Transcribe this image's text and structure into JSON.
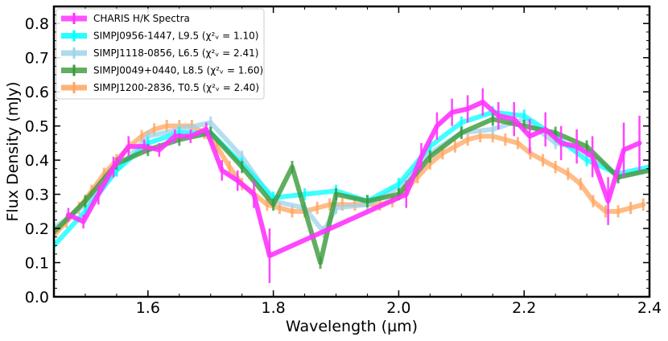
{
  "chart_data": {
    "type": "line",
    "title": "",
    "xlabel": "Wavelength (µm)",
    "ylabel": "Flux Density (mJy)",
    "xlim": [
      1.45,
      2.4
    ],
    "ylim": [
      0.0,
      0.85
    ],
    "xticks": [
      1.6,
      1.8,
      2.0,
      2.2,
      2.4
    ],
    "xtick_labels": [
      "1.6",
      "1.8",
      "2.0",
      "2.2",
      "2.4"
    ],
    "yticks": [
      0.0,
      0.1,
      0.2,
      0.3,
      0.4,
      0.5,
      0.6,
      0.7,
      0.8
    ],
    "ytick_labels": [
      "0.0",
      "0.1",
      "0.2",
      "0.3",
      "0.4",
      "0.5",
      "0.6",
      "0.7",
      "0.8"
    ],
    "grid": false,
    "legend_position": "upper-left",
    "series": [
      {
        "name": "CHARIS H/K Spectra",
        "color": "#ff33ff",
        "errorbars": true,
        "x": [
          1.473,
          1.497,
          1.521,
          1.545,
          1.569,
          1.594,
          1.618,
          1.643,
          1.668,
          1.693,
          1.718,
          1.743,
          1.769,
          1.794,
          2.012,
          2.036,
          2.061,
          2.085,
          2.11,
          2.134,
          2.159,
          2.184,
          2.209,
          2.234,
          2.259,
          2.284,
          2.309,
          2.334,
          2.359,
          2.384
        ],
        "y": [
          0.24,
          0.22,
          0.3,
          0.38,
          0.44,
          0.44,
          0.43,
          0.47,
          0.47,
          0.49,
          0.37,
          0.34,
          0.3,
          0.12,
          0.3,
          0.41,
          0.5,
          0.54,
          0.55,
          0.57,
          0.53,
          0.52,
          0.47,
          0.49,
          0.45,
          0.44,
          0.41,
          0.28,
          0.43,
          0.45
        ],
        "yerr": [
          0.02,
          0.02,
          0.03,
          0.03,
          0.03,
          0.02,
          0.02,
          0.02,
          0.02,
          0.02,
          0.03,
          0.03,
          0.04,
          0.08,
          0.04,
          0.04,
          0.04,
          0.04,
          0.04,
          0.04,
          0.04,
          0.05,
          0.05,
          0.05,
          0.05,
          0.05,
          0.06,
          0.07,
          0.08,
          0.08
        ]
      },
      {
        "name": "SIMPJ0956-1447, L9.5 (χ²ᵥ = 1.10)",
        "color": "#00ffff",
        "errorbars": true,
        "x": [
          1.45,
          1.5,
          1.55,
          1.6,
          1.65,
          1.7,
          1.75,
          1.8,
          1.85,
          1.9,
          1.95,
          2.0,
          2.05,
          2.1,
          2.15,
          2.2,
          2.25,
          2.3,
          2.35,
          2.4
        ],
        "y": [
          0.15,
          0.25,
          0.37,
          0.45,
          0.48,
          0.48,
          0.39,
          0.29,
          0.3,
          0.31,
          0.28,
          0.33,
          0.44,
          0.51,
          0.54,
          0.53,
          0.47,
          0.4,
          0.36,
          0.38
        ]
      },
      {
        "name": "SIMPJ1118-0856, L6.5 (χ²ᵥ = 2.41)",
        "color": "#9fd3ea",
        "errorbars": true,
        "x": [
          1.45,
          1.5,
          1.55,
          1.6,
          1.65,
          1.7,
          1.75,
          1.8,
          1.85,
          1.88,
          1.9,
          1.95,
          2.0,
          2.05,
          2.1,
          2.15,
          2.2,
          2.25,
          2.3,
          2.35,
          2.4
        ],
        "y": [
          0.2,
          0.27,
          0.37,
          0.47,
          0.49,
          0.51,
          0.41,
          0.28,
          0.26,
          0.19,
          0.26,
          0.27,
          0.32,
          0.42,
          0.48,
          0.49,
          0.52,
          0.45,
          0.43,
          0.35,
          0.37
        ]
      },
      {
        "name": "SIMPJ0049+0440, L8.5 (χ²ᵥ = 1.60)",
        "color": "#3a9a3a",
        "errorbars": true,
        "x": [
          1.45,
          1.5,
          1.55,
          1.6,
          1.65,
          1.7,
          1.75,
          1.8,
          1.83,
          1.875,
          1.9,
          1.95,
          2.0,
          2.05,
          2.1,
          2.15,
          2.2,
          2.25,
          2.3,
          2.35,
          2.4
        ],
        "y": [
          0.19,
          0.28,
          0.39,
          0.43,
          0.46,
          0.48,
          0.38,
          0.27,
          0.38,
          0.1,
          0.3,
          0.28,
          0.3,
          0.41,
          0.48,
          0.52,
          0.5,
          0.48,
          0.44,
          0.35,
          0.37
        ]
      },
      {
        "name": "SIMPJ1200-2836, T0.5 (χ²ᵥ = 2.40)",
        "color": "#ffa55f",
        "errorbars": true,
        "x": [
          1.45,
          1.47,
          1.49,
          1.51,
          1.53,
          1.55,
          1.57,
          1.59,
          1.61,
          1.63,
          1.65,
          1.67,
          1.69,
          1.71,
          1.73,
          1.75,
          1.77,
          1.79,
          1.81,
          1.83,
          1.85,
          1.87,
          1.89,
          1.91,
          1.93,
          1.95,
          1.97,
          1.99,
          2.01,
          2.03,
          2.05,
          2.07,
          2.09,
          2.11,
          2.13,
          2.15,
          2.17,
          2.19,
          2.21,
          2.23,
          2.25,
          2.27,
          2.29,
          2.31,
          2.33,
          2.35,
          2.37,
          2.39
        ],
        "y": [
          0.18,
          0.22,
          0.26,
          0.31,
          0.36,
          0.4,
          0.44,
          0.47,
          0.49,
          0.5,
          0.5,
          0.5,
          0.48,
          0.44,
          0.38,
          0.33,
          0.3,
          0.27,
          0.26,
          0.25,
          0.25,
          0.26,
          0.27,
          0.27,
          0.27,
          0.27,
          0.27,
          0.28,
          0.31,
          0.35,
          0.39,
          0.42,
          0.44,
          0.46,
          0.47,
          0.47,
          0.46,
          0.45,
          0.42,
          0.4,
          0.38,
          0.36,
          0.33,
          0.28,
          0.25,
          0.25,
          0.26,
          0.27
        ]
      }
    ]
  }
}
